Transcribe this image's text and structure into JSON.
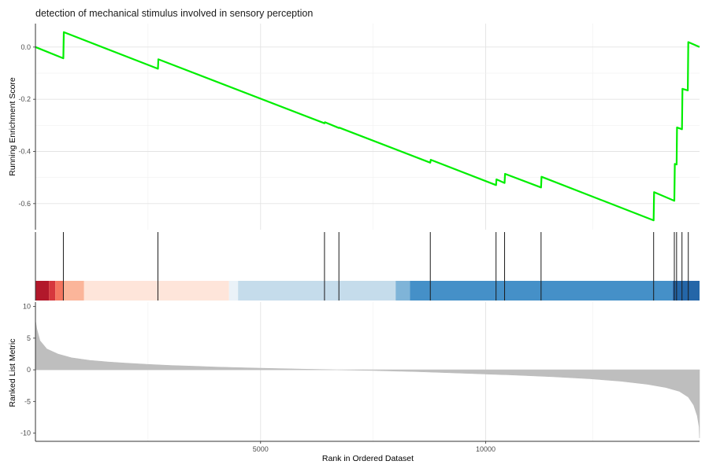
{
  "chart_data": {
    "type": "line",
    "title": "detection of mechanical stimulus involved in sensory perception",
    "xlabel": "Rank in Ordered Dataset",
    "xlim": [
      0,
      14750
    ],
    "x_ticks": [
      {
        "value": 5000,
        "label": "5000"
      },
      {
        "value": 10000,
        "label": "10000"
      }
    ],
    "grid": true,
    "legend": "none",
    "running_score": {
      "ylabel": "Running Enrichment Score",
      "ylim": [
        -0.7,
        0.09
      ],
      "y_ticks": [
        {
          "value": 0.0,
          "label": "0.0"
        },
        {
          "value": -0.2,
          "label": "-0.2"
        },
        {
          "value": -0.4,
          "label": "-0.4"
        },
        {
          "value": -0.6,
          "label": "-0.6"
        }
      ],
      "color": "#00ee00",
      "points": [
        [
          0,
          0.0
        ],
        [
          620,
          -0.043
        ],
        [
          630,
          0.057
        ],
        [
          2720,
          -0.083
        ],
        [
          2730,
          -0.047
        ],
        [
          6420,
          -0.292
        ],
        [
          6430,
          -0.288
        ],
        [
          6740,
          -0.31
        ],
        [
          6750,
          -0.309
        ],
        [
          8770,
          -0.443
        ],
        [
          8780,
          -0.432
        ],
        [
          10230,
          -0.529
        ],
        [
          10240,
          -0.507
        ],
        [
          10420,
          -0.521
        ],
        [
          10430,
          -0.486
        ],
        [
          11230,
          -0.538
        ],
        [
          11240,
          -0.497
        ],
        [
          13730,
          -0.664
        ],
        [
          13740,
          -0.556
        ],
        [
          14190,
          -0.589
        ],
        [
          14200,
          -0.448
        ],
        [
          14240,
          -0.45
        ],
        [
          14250,
          -0.308
        ],
        [
          14360,
          -0.315
        ],
        [
          14370,
          -0.16
        ],
        [
          14490,
          -0.166
        ],
        [
          14500,
          0.019
        ],
        [
          14750,
          0.0
        ]
      ]
    },
    "gene_hits": [
      620,
      2720,
      6420,
      6740,
      8770,
      10230,
      10420,
      11230,
      13730,
      14190,
      14240,
      14360,
      14500
    ],
    "heat_strip": [
      {
        "from": 0,
        "to": 300,
        "color": "#b2182b"
      },
      {
        "from": 300,
        "to": 440,
        "color": "#d6373d"
      },
      {
        "from": 440,
        "to": 620,
        "color": "#f4755f"
      },
      {
        "from": 620,
        "to": 1080,
        "color": "#fbb59a"
      },
      {
        "from": 1080,
        "to": 4300,
        "color": "#fee5da"
      },
      {
        "from": 4300,
        "to": 4500,
        "color": "#eaf2f8"
      },
      {
        "from": 4500,
        "to": 8000,
        "color": "#c5dceb"
      },
      {
        "from": 8000,
        "to": 8320,
        "color": "#7fb4d8"
      },
      {
        "from": 8320,
        "to": 14150,
        "color": "#4590c8"
      },
      {
        "from": 14150,
        "to": 14750,
        "color": "#2466a8"
      }
    ],
    "ranked_metric": {
      "ylabel": "Ranked List Metric",
      "ylim": [
        -11.3,
        10.7
      ],
      "y_ticks": [
        {
          "value": 10,
          "label": "10"
        },
        {
          "value": 5,
          "label": "5"
        },
        {
          "value": 0,
          "label": "0"
        },
        {
          "value": -5,
          "label": "-5"
        },
        {
          "value": -10,
          "label": "-10"
        }
      ],
      "color": "#bebebe",
      "points": [
        [
          0,
          7.8
        ],
        [
          30,
          6.5
        ],
        [
          100,
          4.6
        ],
        [
          250,
          3.3
        ],
        [
          500,
          2.5
        ],
        [
          800,
          1.9
        ],
        [
          1200,
          1.5
        ],
        [
          1600,
          1.25
        ],
        [
          2000,
          1.05
        ],
        [
          2500,
          0.85
        ],
        [
          3000,
          0.7
        ],
        [
          4000,
          0.45
        ],
        [
          5000,
          0.25
        ],
        [
          6000,
          0.1
        ],
        [
          6700,
          0.0
        ],
        [
          7500,
          -0.1
        ],
        [
          8500,
          -0.3
        ],
        [
          9500,
          -0.55
        ],
        [
          10500,
          -0.8
        ],
        [
          11500,
          -1.1
        ],
        [
          12300,
          -1.4
        ],
        [
          13000,
          -1.8
        ],
        [
          13600,
          -2.3
        ],
        [
          14000,
          -2.8
        ],
        [
          14300,
          -3.4
        ],
        [
          14500,
          -4.3
        ],
        [
          14620,
          -5.6
        ],
        [
          14700,
          -7.3
        ],
        [
          14740,
          -9.0
        ],
        [
          14750,
          -10.8
        ]
      ]
    }
  }
}
